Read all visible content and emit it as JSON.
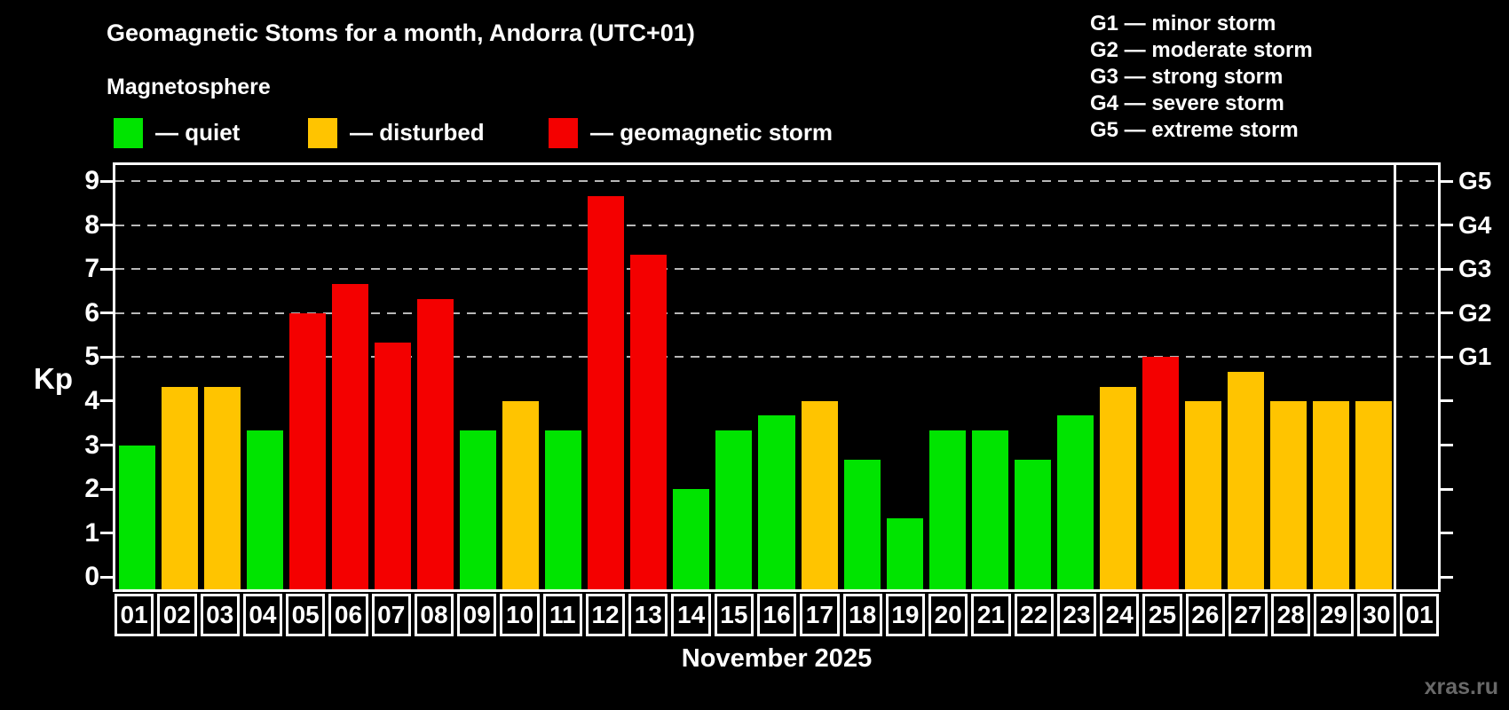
{
  "header": {
    "title": "Geomagnetic Stoms for a month, Andorra (UTC+01)",
    "subtitle": "Magnetosphere"
  },
  "legend": [
    {
      "label": "— quiet",
      "status": "quiet"
    },
    {
      "label": "— disturbed",
      "status": "disturbed"
    },
    {
      "label": "— geomagnetic storm",
      "status": "storm"
    }
  ],
  "g_scale": [
    "G1 — minor storm",
    "G2 — moderate storm",
    "G3 — strong storm",
    "G4 — severe storm",
    "G5 — extreme storm"
  ],
  "colors": {
    "background": "#000000",
    "axis": "#ffffff",
    "grid": "#b8b8b8",
    "quiet": "#00e400",
    "disturbed": "#ffc400",
    "storm": "#f40000",
    "watermark": "#696969"
  },
  "watermark": "xras.ru",
  "chart_data": {
    "type": "bar",
    "title": "Geomagnetic Stoms for a month, Andorra (UTC+01)",
    "xlabel": "November 2025",
    "ylabel": "Kp",
    "categories": [
      "01",
      "02",
      "03",
      "04",
      "05",
      "06",
      "07",
      "08",
      "09",
      "10",
      "11",
      "12",
      "13",
      "14",
      "15",
      "16",
      "17",
      "18",
      "19",
      "20",
      "21",
      "22",
      "23",
      "24",
      "25",
      "26",
      "27",
      "28",
      "29",
      "30",
      "01"
    ],
    "values": [
      3.0,
      4.33,
      4.33,
      3.33,
      6.0,
      6.67,
      5.33,
      6.33,
      3.33,
      4.0,
      3.33,
      8.67,
      7.33,
      2.0,
      3.33,
      3.67,
      4.0,
      2.67,
      1.33,
      3.33,
      3.33,
      2.67,
      3.67,
      4.33,
      5.0,
      4.0,
      4.67,
      4.0,
      4.0,
      4.0,
      null
    ],
    "statuses": [
      "quiet",
      "disturbed",
      "disturbed",
      "quiet",
      "storm",
      "storm",
      "storm",
      "storm",
      "quiet",
      "disturbed",
      "quiet",
      "storm",
      "storm",
      "quiet",
      "quiet",
      "quiet",
      "disturbed",
      "quiet",
      "quiet",
      "quiet",
      "quiet",
      "quiet",
      "quiet",
      "disturbed",
      "storm",
      "disturbed",
      "disturbed",
      "disturbed",
      "disturbed",
      "disturbed",
      "none"
    ],
    "ylim": [
      -0.28,
      9.37
    ],
    "yticks": [
      0,
      1,
      2,
      3,
      4,
      5,
      6,
      7,
      8,
      9
    ],
    "gridlines_at": [
      5,
      6,
      7,
      8,
      9
    ],
    "g_levels": [
      {
        "kp": 9,
        "label": "G5"
      },
      {
        "kp": 8,
        "label": "G4"
      },
      {
        "kp": 7,
        "label": "G3"
      },
      {
        "kp": 6,
        "label": "G2"
      },
      {
        "kp": 5,
        "label": "G1"
      }
    ],
    "legend_position": "top-left",
    "grid": true
  }
}
